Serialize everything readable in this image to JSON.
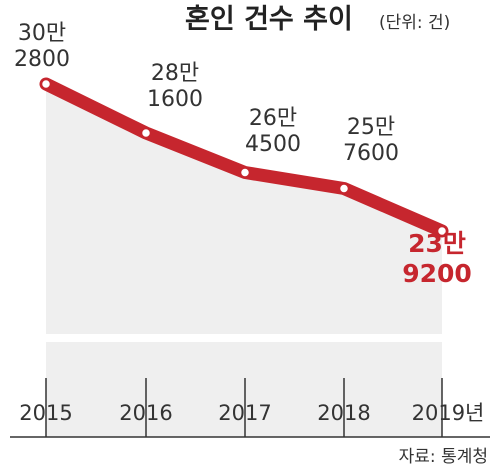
{
  "chart_data": {
    "type": "line",
    "title": "혼인 건수 추이",
    "unit_note": "(단위: 건)",
    "categories": [
      "2015",
      "2016",
      "2017",
      "2018",
      "2019년"
    ],
    "values": [
      302800,
      281600,
      264500,
      257600,
      239200
    ],
    "value_labels": [
      [
        "30만",
        "2800"
      ],
      [
        "28만",
        "1600"
      ],
      [
        "26만",
        "4500"
      ],
      [
        "25만",
        "7600"
      ],
      [
        "23만",
        "9200"
      ]
    ],
    "highlight_index": 4,
    "line_color": "#c6262e",
    "fill_color": "#efefef",
    "source": "자료: 통계청"
  }
}
